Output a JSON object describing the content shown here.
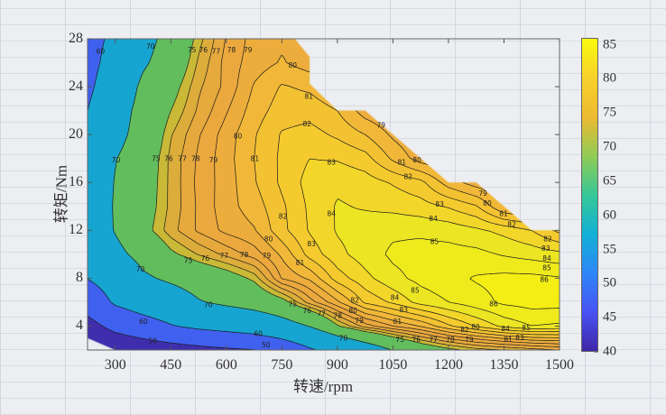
{
  "chart_data": {
    "type": "contour",
    "xlabel": "转速/rpm",
    "ylabel": "转矩/Nm",
    "xlim": [
      225,
      1500
    ],
    "ylim": [
      2,
      28
    ],
    "xticks": [
      300,
      450,
      600,
      750,
      900,
      1050,
      1200,
      1350,
      1500
    ],
    "yticks": [
      4,
      8,
      12,
      16,
      20,
      24,
      28
    ],
    "colorbar": {
      "range": [
        40,
        86
      ],
      "ticks": [
        40,
        45,
        50,
        55,
        60,
        65,
        70,
        75,
        80,
        85
      ],
      "location": "right"
    },
    "levels": [
      40,
      50,
      60,
      70,
      75,
      76,
      77,
      78,
      79,
      80,
      81,
      82,
      83,
      84,
      85,
      86
    ],
    "band_colors": [
      "#3f2dad",
      "#4060ef",
      "#16a5d0",
      "#62bd5c",
      "#c9b936",
      "#dcad3b",
      "#e6a93d",
      "#eba83e",
      "#ecad3c",
      "#f0b738",
      "#f3c232",
      "#f4ca2e",
      "#f2d629",
      "#ebe524",
      "#eeea1c",
      "#f4ee14"
    ],
    "x": [
      225,
      300,
      375,
      450,
      525,
      600,
      675,
      750,
      825,
      900,
      975,
      1050,
      1125,
      1200,
      1275,
      1350,
      1425,
      1500
    ],
    "y": [
      2,
      4,
      6,
      8,
      10,
      12,
      14,
      16,
      18,
      20,
      22,
      24,
      26,
      28
    ],
    "z": [
      [
        42,
        43,
        44.5,
        46,
        47.5,
        48.8,
        49.8,
        53.5,
        59,
        63,
        66.5,
        70.2,
        73,
        74.5,
        75.5,
        76,
        76.5,
        77
      ],
      [
        47,
        52.5,
        56,
        59.5,
        61.8,
        63.3,
        65,
        67.5,
        70.2,
        74.8,
        77.5,
        79,
        80.1,
        81.8,
        83.1,
        84.3,
        85,
        84.8
      ],
      [
        53.9,
        61.2,
        64.5,
        66.5,
        69.6,
        71.2,
        72.5,
        74.2,
        77.5,
        79.8,
        82.2,
        83.2,
        84.4,
        85,
        85.6,
        86.2,
        86.4,
        86.4
      ],
      [
        60.2,
        64.3,
        69.1,
        71,
        72.6,
        73.8,
        75.4,
        79.1,
        80.2,
        82.5,
        83.7,
        84.7,
        85.3,
        85.7,
        86.1,
        86.3,
        86.3,
        86.1
      ],
      [
        63.5,
        68.5,
        71.8,
        74.6,
        76.1,
        77.3,
        78.5,
        80.2,
        82.4,
        83.7,
        84.5,
        85.2,
        85.4,
        85.4,
        85.3,
        84.9,
        84.6,
        84.3
      ],
      [
        66,
        70.3,
        74.2,
        76.6,
        78.2,
        79.3,
        79.9,
        81.7,
        83.1,
        84.1,
        84.5,
        84.8,
        84.8,
        84.6,
        84.2,
        83.7,
        83,
        81.7
      ],
      [
        65.6,
        70.5,
        73.8,
        76.3,
        78.2,
        79.6,
        80.5,
        81.8,
        83.2,
        84.1,
        83.9,
        83.7,
        83.4,
        82.9,
        82.1,
        80,
        79.5,
        79
      ],
      [
        65,
        70.3,
        73.6,
        76.3,
        78.3,
        79.5,
        80.9,
        82.2,
        83.4,
        83.8,
        83.5,
        82.9,
        82.3,
        80.5,
        79.5,
        79,
        79,
        79
      ],
      [
        63.5,
        69.8,
        73.3,
        76.3,
        78.2,
        79.6,
        81,
        82.2,
        83,
        82.9,
        82.4,
        80.8,
        79.5,
        79,
        79,
        79,
        79,
        79
      ],
      [
        62,
        68,
        72.5,
        75.9,
        77.9,
        79.5,
        80.9,
        82.1,
        82.4,
        81.8,
        81,
        79.8,
        79,
        79,
        79,
        79,
        79,
        79
      ],
      [
        60,
        66.8,
        72.2,
        75,
        77.2,
        78.9,
        80.5,
        81.5,
        81.6,
        81,
        79.5,
        79,
        79,
        79,
        79,
        79,
        79,
        79
      ],
      [
        58.4,
        64.9,
        71.3,
        74.1,
        76.8,
        78.3,
        80.1,
        81.1,
        80.8,
        80,
        79.5,
        79,
        79,
        79,
        79,
        79,
        79,
        79
      ],
      [
        57.5,
        63.1,
        69.2,
        72.9,
        76.2,
        78.4,
        79.5,
        80.1,
        79.5,
        79,
        79,
        79,
        79,
        79,
        79,
        79,
        79,
        79
      ],
      [
        57,
        61.9,
        67.7,
        72.2,
        75.6,
        78.1,
        79.4,
        79.8,
        79.6,
        79.5,
        79.5,
        79.5,
        79.5,
        79.5,
        79.5,
        79.5,
        79.5,
        79.5
      ]
    ],
    "boundary": [
      [
        225,
        3
      ],
      [
        300,
        2
      ],
      [
        1500,
        2
      ],
      [
        1500,
        12
      ],
      [
        1425,
        12
      ],
      [
        1275,
        16
      ],
      [
        1200,
        16
      ],
      [
        975,
        22
      ],
      [
        900,
        22
      ],
      [
        825,
        24.25
      ],
      [
        825,
        26.5
      ],
      [
        785,
        28
      ],
      [
        225,
        28
      ]
    ],
    "contour_labels": [
      {
        "text": "60",
        "x": 260,
        "y": 27
      },
      {
        "text": "70",
        "x": 395,
        "y": 27.4
      },
      {
        "text": "75",
        "x": 507,
        "y": 27.1
      },
      {
        "text": "76",
        "x": 538,
        "y": 27.1
      },
      {
        "text": "77",
        "x": 572,
        "y": 27
      },
      {
        "text": "78",
        "x": 614,
        "y": 27.1
      },
      {
        "text": "79",
        "x": 658,
        "y": 27.1
      },
      {
        "text": "80",
        "x": 779,
        "y": 25.8
      },
      {
        "text": "81",
        "x": 823,
        "y": 23.2
      },
      {
        "text": "82",
        "x": 818,
        "y": 20.9
      },
      {
        "text": "83",
        "x": 884,
        "y": 17.7
      },
      {
        "text": "70",
        "x": 302,
        "y": 17.9
      },
      {
        "text": "75",
        "x": 410,
        "y": 18
      },
      {
        "text": "76",
        "x": 444,
        "y": 18
      },
      {
        "text": "77",
        "x": 481,
        "y": 18
      },
      {
        "text": "78",
        "x": 517,
        "y": 18
      },
      {
        "text": "79",
        "x": 565,
        "y": 17.9
      },
      {
        "text": "80",
        "x": 631,
        "y": 19.9
      },
      {
        "text": "81",
        "x": 677,
        "y": 18
      },
      {
        "text": "82",
        "x": 753,
        "y": 13.2
      },
      {
        "text": "83",
        "x": 830,
        "y": 10.9
      },
      {
        "text": "84",
        "x": 884,
        "y": 13.4
      },
      {
        "text": "79",
        "x": 1018,
        "y": 20.8
      },
      {
        "text": "81",
        "x": 1074,
        "y": 17.7
      },
      {
        "text": "80",
        "x": 1115,
        "y": 17.9
      },
      {
        "text": "82",
        "x": 1091,
        "y": 16.5
      },
      {
        "text": "83",
        "x": 1176,
        "y": 14.2
      },
      {
        "text": "84",
        "x": 1159,
        "y": 13
      },
      {
        "text": "79",
        "x": 1293,
        "y": 15.1
      },
      {
        "text": "80",
        "x": 1305,
        "y": 14.6
      },
      {
        "text": "81",
        "x": 1349,
        "y": 13.4
      },
      {
        "text": "82",
        "x": 1371,
        "y": 12.5
      },
      {
        "text": "82",
        "x": 1468,
        "y": 11.3
      },
      {
        "text": "83",
        "x": 1463,
        "y": 10.8
      },
      {
        "text": "84",
        "x": 1466,
        "y": 10.3
      },
      {
        "text": "85",
        "x": 1466,
        "y": 9.2
      },
      {
        "text": "86",
        "x": 1459,
        "y": 7.9
      },
      {
        "text": "85",
        "x": 1162,
        "y": 11.1
      },
      {
        "text": "85",
        "x": 1110,
        "y": 7
      },
      {
        "text": "86",
        "x": 1322,
        "y": 5.9
      },
      {
        "text": "85",
        "x": 1410,
        "y": 3.9
      },
      {
        "text": "84",
        "x": 1354,
        "y": 3.8
      },
      {
        "text": "83",
        "x": 1378,
        "y": 3.5
      },
      {
        "text": "81",
        "x": 1366,
        "y": 2.9
      },
      {
        "text": "70",
        "x": 368,
        "y": 8.8
      },
      {
        "text": "75",
        "x": 497,
        "y": 9.5
      },
      {
        "text": "76",
        "x": 543,
        "y": 9.7
      },
      {
        "text": "77",
        "x": 594,
        "y": 9.9
      },
      {
        "text": "78",
        "x": 648,
        "y": 10
      },
      {
        "text": "79",
        "x": 709,
        "y": 9.9
      },
      {
        "text": "80",
        "x": 714,
        "y": 11.3
      },
      {
        "text": "81",
        "x": 799,
        "y": 9.3
      },
      {
        "text": "82",
        "x": 947,
        "y": 6.2
      },
      {
        "text": "80",
        "x": 942,
        "y": 5.3
      },
      {
        "text": "79",
        "x": 959,
        "y": 4.5
      },
      {
        "text": "84",
        "x": 1055,
        "y": 6.4
      },
      {
        "text": "83",
        "x": 1079,
        "y": 5.4
      },
      {
        "text": "81",
        "x": 1062,
        "y": 4.4
      },
      {
        "text": "75",
        "x": 779,
        "y": 5.9
      },
      {
        "text": "76",
        "x": 818,
        "y": 5.3
      },
      {
        "text": "77",
        "x": 857,
        "y": 5.1
      },
      {
        "text": "78",
        "x": 901,
        "y": 4.9
      },
      {
        "text": "70",
        "x": 551,
        "y": 5.8
      },
      {
        "text": "70",
        "x": 916,
        "y": 3
      },
      {
        "text": "60",
        "x": 376,
        "y": 4.4
      },
      {
        "text": "50",
        "x": 401,
        "y": 2.8
      },
      {
        "text": "60",
        "x": 686,
        "y": 3.4
      },
      {
        "text": "50",
        "x": 707,
        "y": 2.3
      },
      {
        "text": "75",
        "x": 1069,
        "y": 2.9
      },
      {
        "text": "76",
        "x": 1113,
        "y": 2.9
      },
      {
        "text": "77",
        "x": 1159,
        "y": 2.9
      },
      {
        "text": "78",
        "x": 1205,
        "y": 2.9
      },
      {
        "text": "79",
        "x": 1256,
        "y": 2.9
      },
      {
        "text": "82",
        "x": 1244,
        "y": 3.6
      },
      {
        "text": "80",
        "x": 1249,
        "y": 3.2
      }
    ]
  }
}
